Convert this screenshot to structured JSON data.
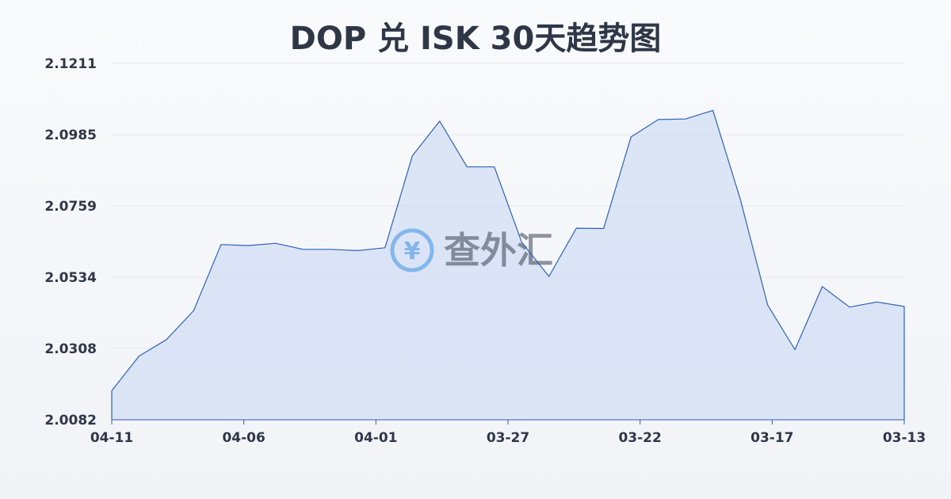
{
  "chart_data": {
    "type": "area",
    "title": "DOP 兑 ISK 30天趋势图",
    "xlabel": "",
    "ylabel": "",
    "ylim": [
      2.0082,
      2.1211
    ],
    "y_ticks": [
      "2.1211",
      "2.0985",
      "2.0759",
      "2.0534",
      "2.0308",
      "2.0082"
    ],
    "x_ticks": [
      "04-11",
      "04-06",
      "04-01",
      "03-27",
      "03-22",
      "03-17",
      "03-13"
    ],
    "grid": true,
    "series": [
      {
        "values": [
          2.0174,
          2.0284,
          2.0336,
          2.0428,
          2.0637,
          2.0634,
          2.0641,
          2.0622,
          2.0622,
          2.0618,
          2.0627,
          2.0918,
          2.1028,
          2.0883,
          2.0883,
          2.0645,
          2.0536,
          2.0689,
          2.0688,
          2.0978,
          2.1033,
          2.1035,
          2.1062,
          2.0781,
          2.0446,
          2.0304,
          2.0504,
          2.0439,
          2.0455,
          2.0441
        ]
      }
    ],
    "colors": {
      "line": "#2d62b8",
      "area": "#c9d8f3"
    }
  },
  "watermark": {
    "text": "查外汇",
    "symbol": "¥"
  }
}
